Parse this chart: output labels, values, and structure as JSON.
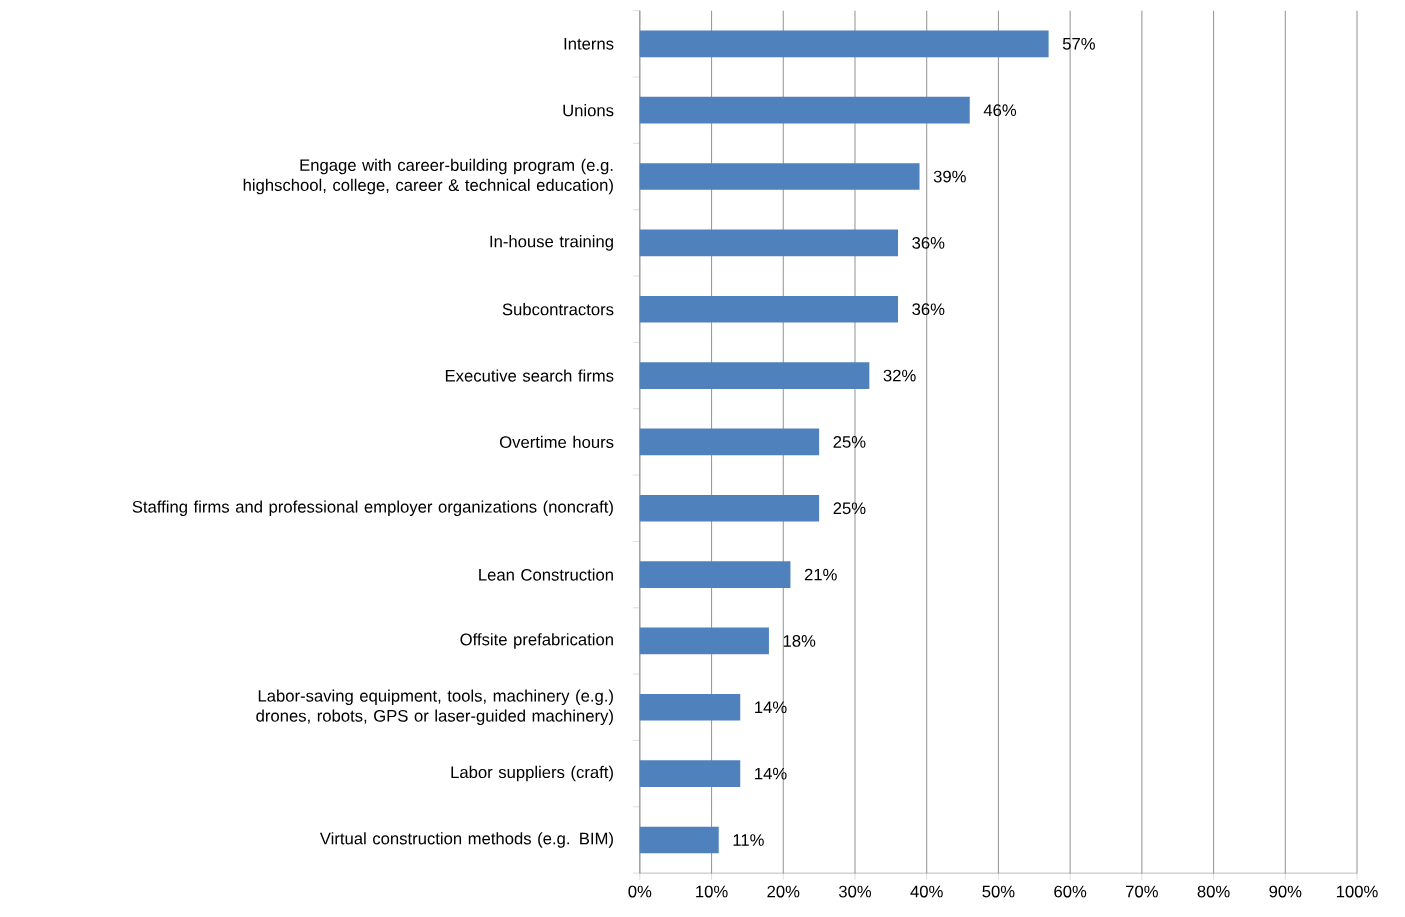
{
  "chart_data": {
    "type": "bar",
    "orientation": "horizontal",
    "categories": [
      "Interns",
      "Unions",
      "Engage with career-building program (e.g. highschool, college, career & technical education)",
      "In-house training",
      "Subcontractors",
      "Executive search firms",
      "Overtime hours",
      "Staffing firms and professional employer organizations (noncraft)",
      "Lean Construction",
      "Offsite prefabrication",
      "Labor-saving equipment, tools, machinery (e.g.) drones, robots, GPS or laser-guided machinery)",
      "Labor suppliers (craft)",
      "Virtual construction methods (e.g. BIM)"
    ],
    "values": [
      57,
      46,
      39,
      36,
      36,
      32,
      25,
      25,
      21,
      18,
      14,
      14,
      11
    ],
    "value_labels": [
      "57%",
      "46%",
      "39%",
      "36%",
      "36%",
      "32%",
      "25%",
      "25%",
      "21%",
      "18%",
      "14%",
      "14%",
      "11%"
    ],
    "color": "#4f81bd",
    "xlim": [
      0,
      100
    ],
    "xticks": [
      {
        "value": 0,
        "label": "0%"
      },
      {
        "value": 10,
        "label": "10%"
      },
      {
        "value": 20,
        "label": "20%"
      },
      {
        "value": 30,
        "label": "30%"
      },
      {
        "value": 40,
        "label": "40%"
      },
      {
        "value": 50,
        "label": "50%"
      },
      {
        "value": 60,
        "label": "60%"
      },
      {
        "value": 70,
        "label": "70%"
      },
      {
        "value": 80,
        "label": "80%"
      },
      {
        "value": 90,
        "label": "90%"
      },
      {
        "value": 100,
        "label": "100%"
      }
    ],
    "grid": "x"
  }
}
